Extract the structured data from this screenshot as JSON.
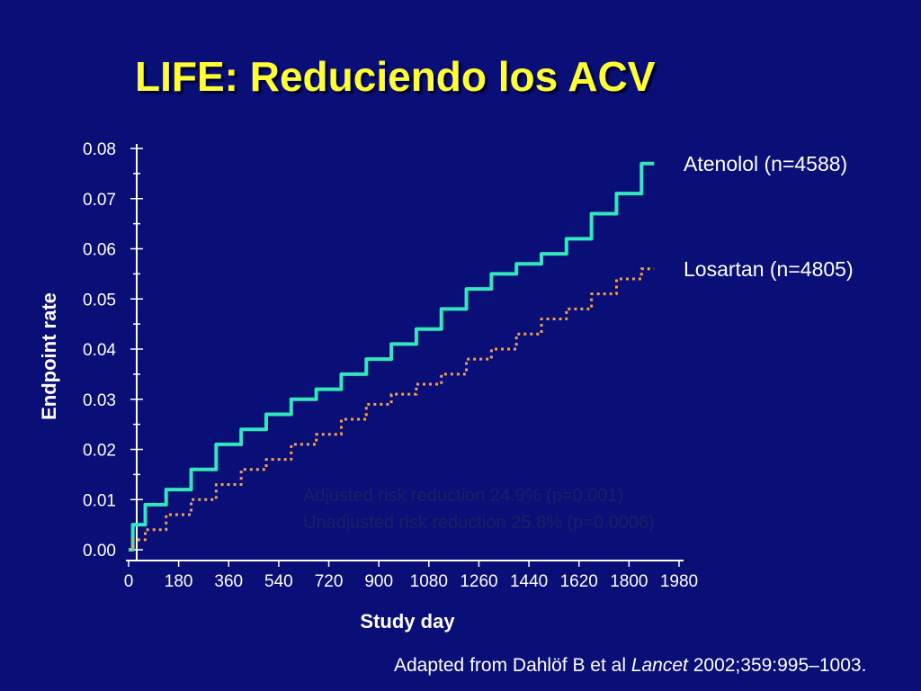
{
  "slide": {
    "title": "LIFE:  Reduciendo los ACV",
    "citation": {
      "prefix": "Adapted from Dahlöf B et al ",
      "journal": "Lancet",
      "suffix": " 2002;359:995–1003."
    }
  },
  "colors": {
    "background": "#0a0f78",
    "title": "#ffff33",
    "atenolol": "#33e6bb",
    "losartan": "#f0a050",
    "axis": "#ffffff",
    "annotation": "#1c1f60"
  },
  "chart_data": {
    "type": "line",
    "title": "",
    "xlabel": "Study day",
    "ylabel": "Endpoint rate",
    "xlim": [
      0,
      1980
    ],
    "ylim": [
      0,
      0.08
    ],
    "x_ticks": [
      0,
      180,
      360,
      540,
      720,
      900,
      1080,
      1260,
      1440,
      1620,
      1800,
      1980
    ],
    "x_tick_labels": [
      "0",
      "180",
      "360",
      "540",
      "720",
      "900",
      "1080",
      "1260",
      "1440",
      "1620",
      "1800",
      "1980"
    ],
    "y_ticks": [
      0,
      0.01,
      0.02,
      0.03,
      0.04,
      0.05,
      0.06,
      0.07,
      0.08
    ],
    "y_tick_labels": [
      "0.00",
      "0.01",
      "0.02",
      "0.03",
      "0.04",
      "0.05",
      "0.06",
      "0.07",
      "0.08"
    ],
    "grid": false,
    "series": [
      {
        "name": "Atenolol (n=4588)",
        "style": "solid",
        "x": [
          0,
          30,
          90,
          180,
          270,
          360,
          450,
          540,
          630,
          720,
          810,
          900,
          990,
          1080,
          1170,
          1260,
          1350,
          1440,
          1530,
          1620,
          1710,
          1800,
          1890
        ],
        "y": [
          0.0,
          0.005,
          0.009,
          0.012,
          0.016,
          0.021,
          0.024,
          0.027,
          0.03,
          0.032,
          0.035,
          0.038,
          0.041,
          0.044,
          0.048,
          0.052,
          0.055,
          0.057,
          0.059,
          0.062,
          0.067,
          0.071,
          0.077
        ]
      },
      {
        "name": "Losartan (n=4805)",
        "style": "dotted",
        "x": [
          0,
          30,
          90,
          180,
          270,
          360,
          450,
          540,
          630,
          720,
          810,
          900,
          990,
          1080,
          1170,
          1260,
          1350,
          1440,
          1530,
          1620,
          1710,
          1800,
          1890
        ],
        "y": [
          0.0,
          0.002,
          0.004,
          0.007,
          0.01,
          0.013,
          0.016,
          0.018,
          0.021,
          0.023,
          0.026,
          0.029,
          0.031,
          0.033,
          0.035,
          0.038,
          0.04,
          0.043,
          0.046,
          0.048,
          0.051,
          0.054,
          0.056
        ]
      }
    ],
    "annotations": [
      "Adjusted risk reduction 24.9% (p=0.001)",
      "Unadjusted risk reduction 25.8% (p=0.0006)"
    ]
  }
}
